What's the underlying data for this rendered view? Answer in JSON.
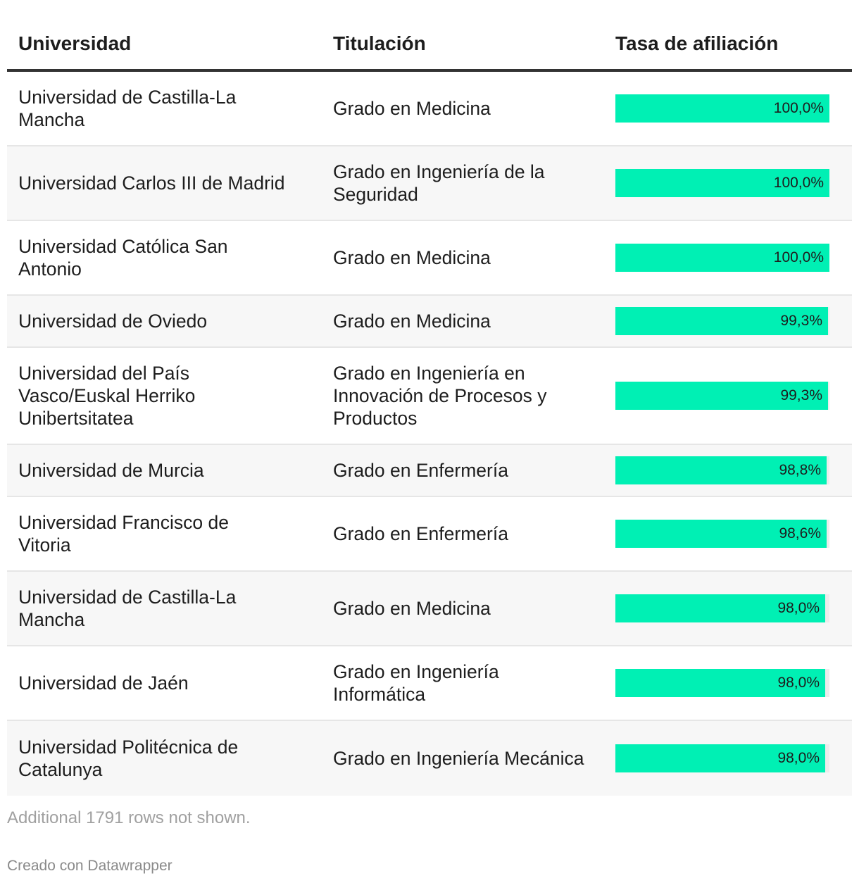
{
  "chart_data": {
    "type": "table",
    "columns": [
      "Universidad",
      "Titulación",
      "Tasa de afiliación"
    ],
    "rows": [
      {
        "universidad": "Universidad de Castilla-La Mancha",
        "titulacion": "Grado en Medicina",
        "value": 100.0,
        "label": "100,0%"
      },
      {
        "universidad": "Universidad Carlos III de Madrid",
        "titulacion": "Grado en Ingeniería de la Seguridad",
        "value": 100.0,
        "label": "100,0%"
      },
      {
        "universidad": "Universidad Católica San Antonio",
        "titulacion": "Grado en Medicina",
        "value": 100.0,
        "label": "100,0%"
      },
      {
        "universidad": "Universidad de Oviedo",
        "titulacion": "Grado en Medicina",
        "value": 99.3,
        "label": "99,3%"
      },
      {
        "universidad": "Universidad del País Vasco/Euskal Herriko Unibertsitatea",
        "titulacion": "Grado en Ingeniería en Innovación de Procesos y Productos",
        "value": 99.3,
        "label": "99,3%"
      },
      {
        "universidad": "Universidad de Murcia",
        "titulacion": "Grado en Enfermería",
        "value": 98.8,
        "label": "98,8%"
      },
      {
        "universidad": "Universidad Francisco de Vitoria",
        "titulacion": "Grado en Enfermería",
        "value": 98.6,
        "label": "98,6%"
      },
      {
        "universidad": "Universidad de Castilla-La Mancha",
        "titulacion": "Grado en Medicina",
        "value": 98.0,
        "label": "98,0%"
      },
      {
        "universidad": "Universidad de Jaén",
        "titulacion": "Grado en Ingeniería Informática",
        "value": 98.0,
        "label": "98,0%"
      },
      {
        "universidad": "Universidad Politécnica de Catalunya",
        "titulacion": "Grado en Ingeniería Mecánica",
        "value": 98.0,
        "label": "98,0%"
      }
    ],
    "bar_max": 100,
    "bar_color": "#00f0b4"
  },
  "notes": "Additional 1791 rows not shown.",
  "credit": "Creado con Datawrapper"
}
